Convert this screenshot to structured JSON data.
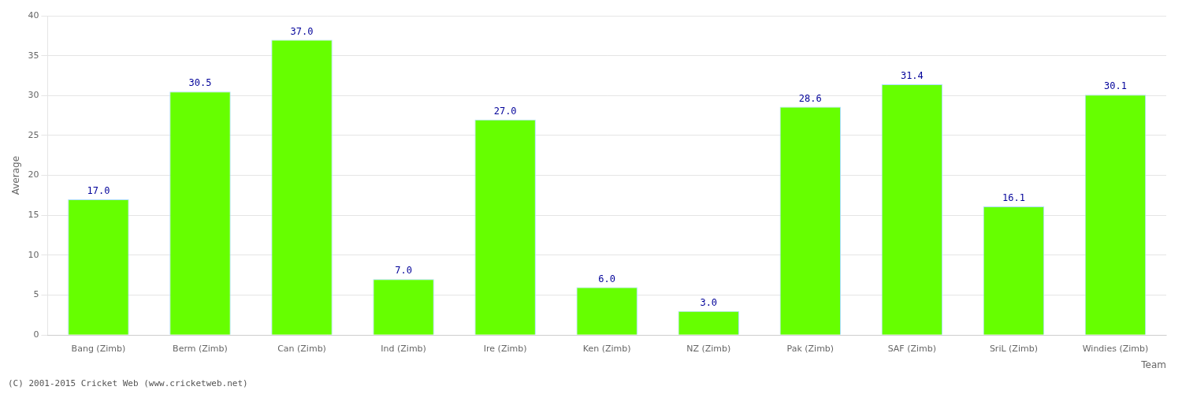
{
  "chart_data": {
    "type": "bar",
    "categories": [
      "Bang (Zimb)",
      "Berm (Zimb)",
      "Can (Zimb)",
      "Ind (Zimb)",
      "Ire (Zimb)",
      "Ken (Zimb)",
      "NZ (Zimb)",
      "Pak (Zimb)",
      "SAF (Zimb)",
      "SriL (Zimb)",
      "Windies (Zimb)"
    ],
    "values": [
      17.0,
      30.5,
      37.0,
      7.0,
      27.0,
      6.0,
      3.0,
      28.6,
      31.4,
      16.1,
      30.1
    ],
    "value_labels": [
      "17.0",
      "30.5",
      "37.0",
      "7.0",
      "27.0",
      "6.0",
      "3.0",
      "28.6",
      "31.4",
      "16.1",
      "30.1"
    ],
    "data_labels": true,
    "color": "#66ff00",
    "xlabel": "Team",
    "ylabel": "Average",
    "ylim": [
      0,
      40
    ],
    "yticks": [
      0,
      5,
      10,
      15,
      20,
      25,
      30,
      35,
      40
    ],
    "grid": true,
    "footer": "(C) 2001-2015 Cricket Web (www.cricketweb.net)"
  }
}
